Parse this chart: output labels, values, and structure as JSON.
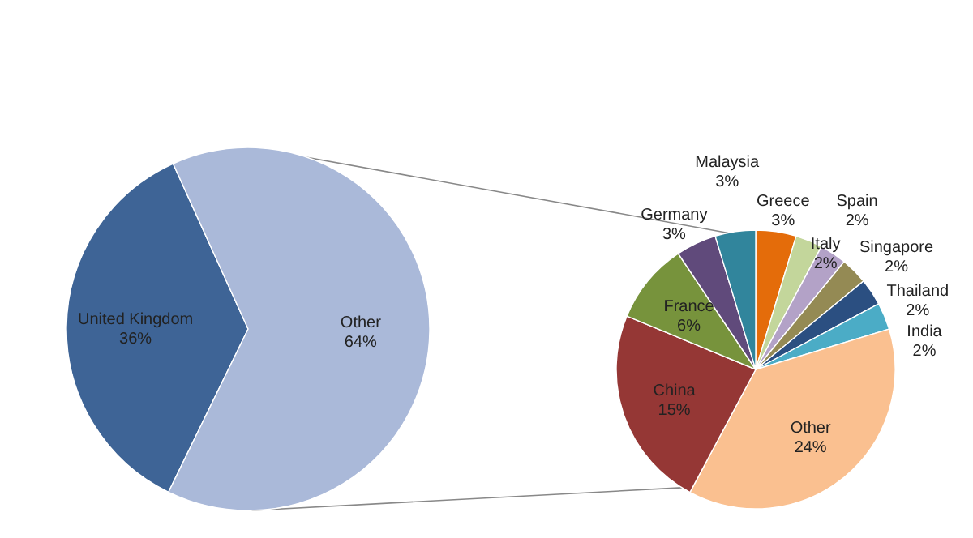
{
  "chart_data": [
    {
      "type": "pie",
      "categories": [
        "United Kingdom",
        "Other"
      ],
      "values": [
        36,
        64
      ],
      "colors": [
        "#3e6496",
        "#aab9d9"
      ],
      "value_labels": [
        "36%",
        "64%"
      ]
    },
    {
      "type": "pie",
      "categories": [
        "Greece",
        "Italy",
        "Spain",
        "Singapore",
        "Thailand",
        "India",
        "Other",
        "China",
        "France",
        "Germany",
        "Malaysia"
      ],
      "values": [
        3,
        2,
        2,
        2,
        2,
        2,
        24,
        15,
        6,
        3,
        3
      ],
      "colors": [
        "#e46c0a",
        "#c3d69b",
        "#b3a2c7",
        "#948a54",
        "#2b4f81",
        "#4bacc6",
        "#fac090",
        "#953735",
        "#77933c",
        "#604a7b",
        "#31859c"
      ],
      "value_labels": [
        "3%",
        "2%",
        "2%",
        "2%",
        "2%",
        "2%",
        "24%",
        "15%",
        "6%",
        "3%",
        "3%"
      ]
    }
  ]
}
